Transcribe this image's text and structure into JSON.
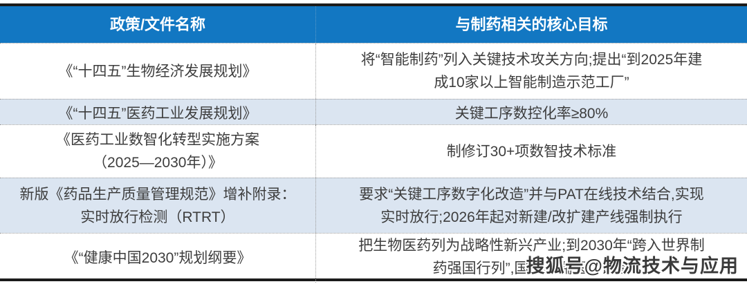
{
  "colors": {
    "header_bg": "#1277c2",
    "header_text": "#ffffff",
    "alt_row_bg": "#dbe5f1",
    "body_text": "#3d3d3d",
    "thick_border": "#1b1b1b",
    "dotted_border": "#9a9a9a"
  },
  "table": {
    "columns": [
      "政策/文件名称",
      "与制药相关的核心目标"
    ],
    "rows": [
      {
        "policy": "《“十四五”生物经济发展规划》",
        "goal": "将“智能制药”列入关键技术攻关方向;提出“到2025年建\n成10家以上智能制造示范工厂”"
      },
      {
        "policy": "《“十四五”医药工业发展规划》",
        "goal": "关键工序数控化率≥80%"
      },
      {
        "policy": "《医药工业数智化转型实施方案\n（2025—2030年）》",
        "goal": "制修订30+项数智技术标准"
      },
      {
        "policy": "新版《药品生产质量管理规范》增补附录：\n实时放行检测（RTRT）",
        "goal": "要求“关键工序数字化改造”并与PAT在线技术结合,实现\n实时放行;2026年起对新建/改扩建产线强制执行"
      },
      {
        "policy": "《“健康中国2030”规划纲要》",
        "goal": "把生物医药列为战略性新兴产业;到2030年“跨入世界制\n药强国行列”,国产高端医疗设备"
      }
    ]
  },
  "watermark": {
    "text": "搜狐号@物流技术与应用"
  }
}
